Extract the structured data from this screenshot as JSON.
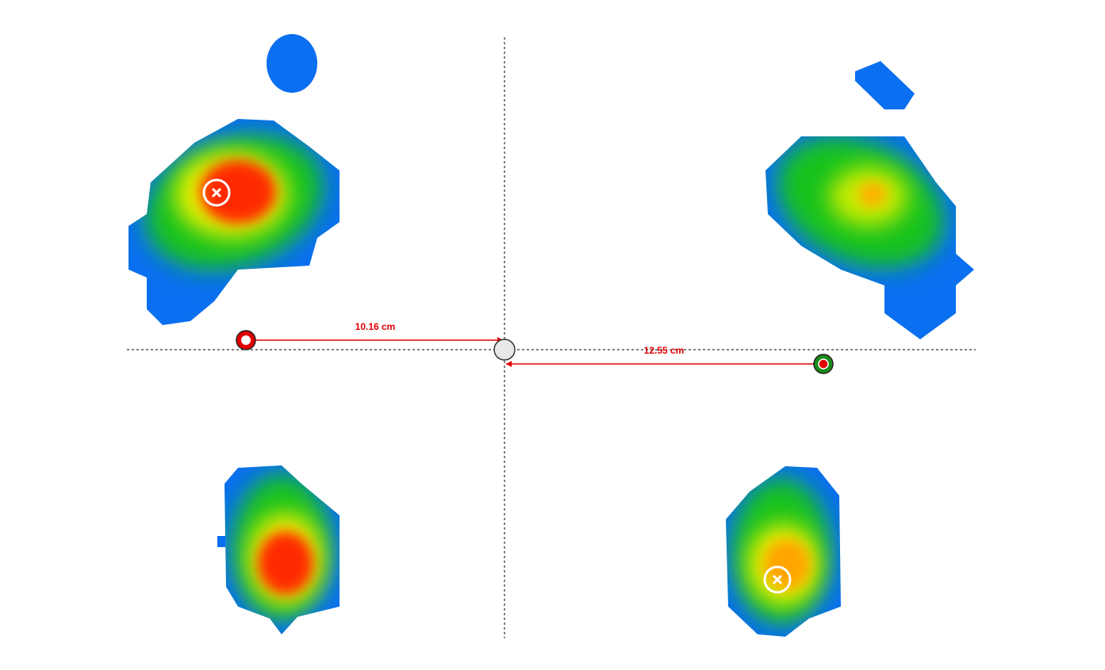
{
  "measurements": [
    {
      "label": "10.16 cm"
    },
    {
      "label": "12.55 cm"
    }
  ]
}
